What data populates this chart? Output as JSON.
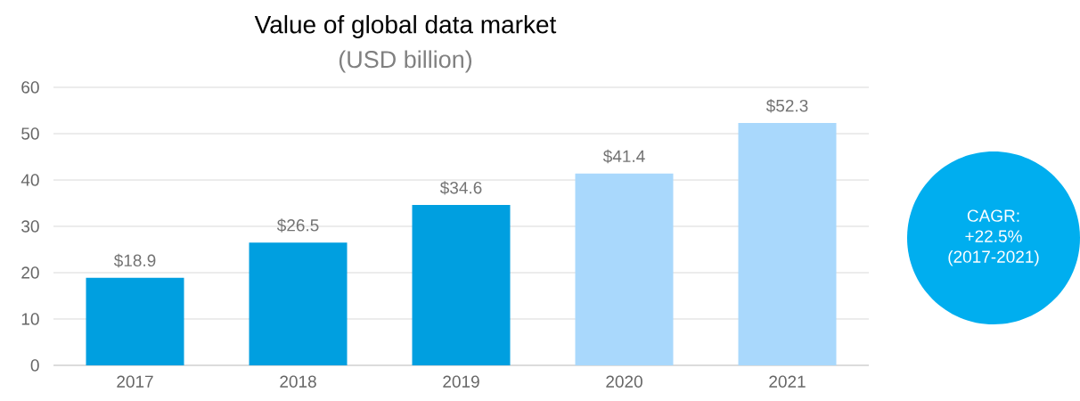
{
  "chart_data": {
    "type": "bar",
    "title": "Value of global data market",
    "subtitle": "(USD billion)",
    "categories": [
      "2017",
      "2018",
      "2019",
      "2020",
      "2021"
    ],
    "values": [
      18.9,
      26.5,
      34.6,
      41.4,
      52.3
    ],
    "colors": [
      "#009fe0",
      "#009fe0",
      "#009fe0",
      "#a9d8fc",
      "#a9d8fc"
    ],
    "value_labels": [
      "$18.9",
      "$26.5",
      "$34.6",
      "$41.4",
      "$52.3"
    ],
    "ylim": [
      0,
      60
    ],
    "yticks": [
      0,
      10,
      20,
      30,
      40,
      50,
      60
    ],
    "grid": "y",
    "annotations": [
      "CAGR: +22.5% (2017-2021)"
    ]
  }
}
